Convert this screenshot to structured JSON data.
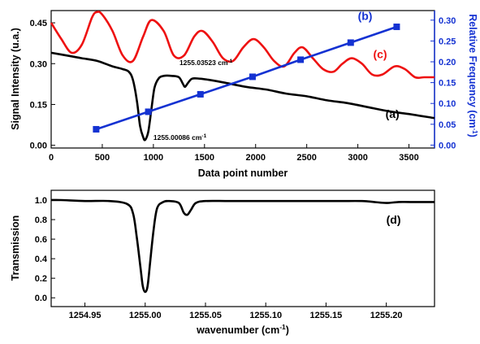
{
  "chart_data": [
    {
      "id": "top",
      "type": "line",
      "xlabel": "Data point number",
      "ylabel_left": "Signal Intensity (u.a.)",
      "ylabel_right": "Relative Frequency (cm",
      "ylabel_right_sup": "-1",
      "ylabel_right_end": ")",
      "xlim": [
        0,
        3750
      ],
      "ylim_left": [
        -0.01,
        0.495
      ],
      "ylim_right": [
        -0.007,
        0.323
      ],
      "xticks": [
        "0",
        "500",
        "1000",
        "1500",
        "2000",
        "2500",
        "3000",
        "3500"
      ],
      "xtick_values": [
        0,
        500,
        1000,
        1500,
        2000,
        2500,
        3000,
        3500
      ],
      "yticks_left": [
        "0.00",
        "0.15",
        "0.30",
        "0.45"
      ],
      "ytick_values_left": [
        0,
        0.15,
        0.3,
        0.45
      ],
      "yticks_right": [
        "0.00",
        "0.05",
        "0.10",
        "0.15",
        "0.20",
        "0.25",
        "0.30"
      ],
      "ytick_values_right": [
        0,
        0.05,
        0.1,
        0.15,
        0.2,
        0.25,
        0.3
      ],
      "series": [
        {
          "name": "(a)",
          "color": "#000000",
          "axis": "left",
          "style": "line",
          "x": [
            0,
            150,
            300,
            450,
            600,
            700,
            760,
            800,
            840,
            870,
            900,
            920,
            950,
            980,
            1010,
            1050,
            1100,
            1180,
            1250,
            1290,
            1310,
            1340,
            1380,
            1450,
            1550,
            1700,
            1900,
            2100,
            2300,
            2500,
            2700,
            2900,
            3100,
            3300,
            3500,
            3750
          ],
          "y": [
            0.34,
            0.33,
            0.32,
            0.31,
            0.29,
            0.28,
            0.27,
            0.24,
            0.16,
            0.07,
            0.03,
            0.02,
            0.05,
            0.13,
            0.21,
            0.245,
            0.255,
            0.255,
            0.25,
            0.225,
            0.215,
            0.23,
            0.245,
            0.245,
            0.24,
            0.23,
            0.215,
            0.205,
            0.19,
            0.18,
            0.165,
            0.155,
            0.14,
            0.125,
            0.115,
            0.1
          ]
        },
        {
          "name": "(c)",
          "color": "#ee1111",
          "axis": "left",
          "style": "line",
          "x": [
            0,
            100,
            200,
            300,
            400,
            450,
            500,
            600,
            700,
            800,
            900,
            980,
            1100,
            1200,
            1300,
            1400,
            1480,
            1580,
            1680,
            1780,
            1880,
            1980,
            2080,
            2180,
            2280,
            2380,
            2460,
            2560,
            2660,
            2760,
            2850,
            2940,
            3040,
            3140,
            3240,
            3360,
            3460,
            3560,
            3650,
            3750
          ],
          "y": [
            0.45,
            0.39,
            0.34,
            0.37,
            0.47,
            0.49,
            0.48,
            0.42,
            0.33,
            0.31,
            0.4,
            0.46,
            0.42,
            0.33,
            0.33,
            0.4,
            0.42,
            0.38,
            0.32,
            0.31,
            0.36,
            0.39,
            0.36,
            0.31,
            0.29,
            0.34,
            0.36,
            0.32,
            0.28,
            0.27,
            0.3,
            0.32,
            0.3,
            0.26,
            0.26,
            0.29,
            0.28,
            0.25,
            0.25,
            0.25
          ]
        },
        {
          "name": "(b)",
          "color": "#1432d2",
          "axis": "right",
          "style": "line-square",
          "x": [
            440,
            950,
            1460,
            1970,
            2440,
            2930,
            3380
          ],
          "y": [
            0.038,
            0.08,
            0.122,
            0.164,
            0.205,
            0.246,
            0.284
          ]
        }
      ],
      "labels": [
        {
          "text": "(a)",
          "color": "#000000",
          "x": 3270,
          "y": 0.1
        },
        {
          "text": "(b)",
          "color": "#1432d2",
          "x": 3000,
          "y": 0.46
        },
        {
          "text": "(c)",
          "color": "#ee1111",
          "x": 3150,
          "y": 0.32
        }
      ],
      "annotations": [
        {
          "text": "1255.03523 cm",
          "sup": "-1",
          "x": 1255,
          "y": 0.295
        },
        {
          "text": "1255.00086 cm",
          "sup": "-1",
          "x": 1000,
          "y": 0.02
        }
      ]
    },
    {
      "id": "bottom",
      "type": "line",
      "xlabel": "wavenumber (cm",
      "xlabel_sup": "-1",
      "xlabel_end": ")",
      "ylabel": "Transmission",
      "xlim": [
        1254.922,
        1255.24
      ],
      "ylim": [
        -0.09,
        1.1
      ],
      "xticks": [
        "1254.95",
        "1255.00",
        "1255.05",
        "1255.10",
        "1255.15",
        "1255.20"
      ],
      "xtick_values": [
        1254.95,
        1255.0,
        1255.05,
        1255.1,
        1255.15,
        1255.2
      ],
      "yticks": [
        "0.0",
        "0.2",
        "0.4",
        "0.6",
        "0.8",
        "1.0"
      ],
      "ytick_values": [
        0.0,
        0.2,
        0.4,
        0.6,
        0.8,
        1.0
      ],
      "series": [
        {
          "name": "(d)",
          "color": "#000000",
          "x": [
            1254.922,
            1254.93,
            1254.95,
            1254.97,
            1254.985,
            1254.99,
            1254.993,
            1254.996,
            1254.998,
            1255.0,
            1255.002,
            1255.004,
            1255.007,
            1255.01,
            1255.015,
            1255.02,
            1255.028,
            1255.032,
            1255.035,
            1255.038,
            1255.042,
            1255.05,
            1255.07,
            1255.1,
            1255.13,
            1255.16,
            1255.18,
            1255.19,
            1255.2,
            1255.21,
            1255.22,
            1255.24
          ],
          "y": [
            1.0,
            1.0,
            0.99,
            0.99,
            0.96,
            0.86,
            0.62,
            0.32,
            0.12,
            0.06,
            0.12,
            0.35,
            0.7,
            0.92,
            0.98,
            0.99,
            0.97,
            0.87,
            0.85,
            0.9,
            0.97,
            0.99,
            0.99,
            0.99,
            0.99,
            0.99,
            0.99,
            0.98,
            0.97,
            0.98,
            0.98,
            0.98
          ]
        }
      ],
      "labels": [
        {
          "text": "(d)",
          "color": "#000000",
          "x": 1255.2,
          "y": 0.76
        }
      ]
    }
  ]
}
